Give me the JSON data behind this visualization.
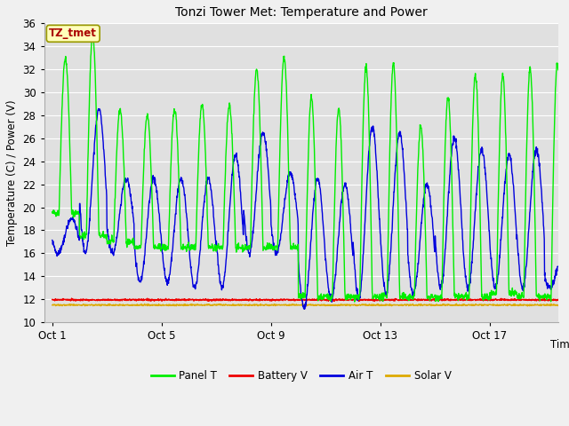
{
  "title": "Tonzi Tower Met: Temperature and Power",
  "xlabel": "Time",
  "ylabel": "Temperature (C) / Power (V)",
  "ylim": [
    10,
    36
  ],
  "yticks": [
    10,
    12,
    14,
    16,
    18,
    20,
    22,
    24,
    26,
    28,
    30,
    32,
    34,
    36
  ],
  "xtick_labels": [
    "Oct 1",
    "Oct 5",
    "Oct 9",
    "Oct 13",
    "Oct 17"
  ],
  "xtick_positions": [
    0,
    4,
    8,
    12,
    16
  ],
  "annotation_text": "TZ_tmet",
  "fig_bg_color": "#f0f0f0",
  "plot_bg_color": "#e0e0e0",
  "grid_color": "#ffffff",
  "panel_t_color": "#00ee00",
  "air_t_color": "#0000dd",
  "battery_v_color": "#ee0000",
  "solar_v_color": "#ddaa00",
  "n_days": 19,
  "panel_day_peaks": [
    33.0,
    35.0,
    28.5,
    28.0,
    28.5,
    29.0,
    28.8,
    32.0,
    33.0,
    29.5,
    28.5,
    32.2,
    32.5,
    27.0,
    29.5,
    31.5,
    31.5,
    32.0,
    32.5
  ],
  "panel_night_mins": [
    19.5,
    17.5,
    17.0,
    16.5,
    16.5,
    16.5,
    16.5,
    16.5,
    16.5,
    12.2,
    12.2,
    12.2,
    12.2,
    12.2,
    12.2,
    12.2,
    12.5,
    12.2,
    12.2
  ],
  "air_day_peaks": [
    19.0,
    28.5,
    22.5,
    22.5,
    22.5,
    22.5,
    24.5,
    26.5,
    23.0,
    22.5,
    22.0,
    27.0,
    26.5,
    22.0,
    26.0,
    25.0,
    24.5,
    25.0,
    16.0
  ],
  "air_night_mins": [
    16.0,
    16.0,
    16.0,
    13.5,
    13.5,
    13.0,
    13.0,
    16.0,
    16.0,
    11.2,
    12.0,
    12.0,
    12.5,
    12.5,
    13.0,
    13.0,
    13.0,
    13.0,
    13.0
  ],
  "battery_v_level": 11.95,
  "solar_v_level": 11.5
}
